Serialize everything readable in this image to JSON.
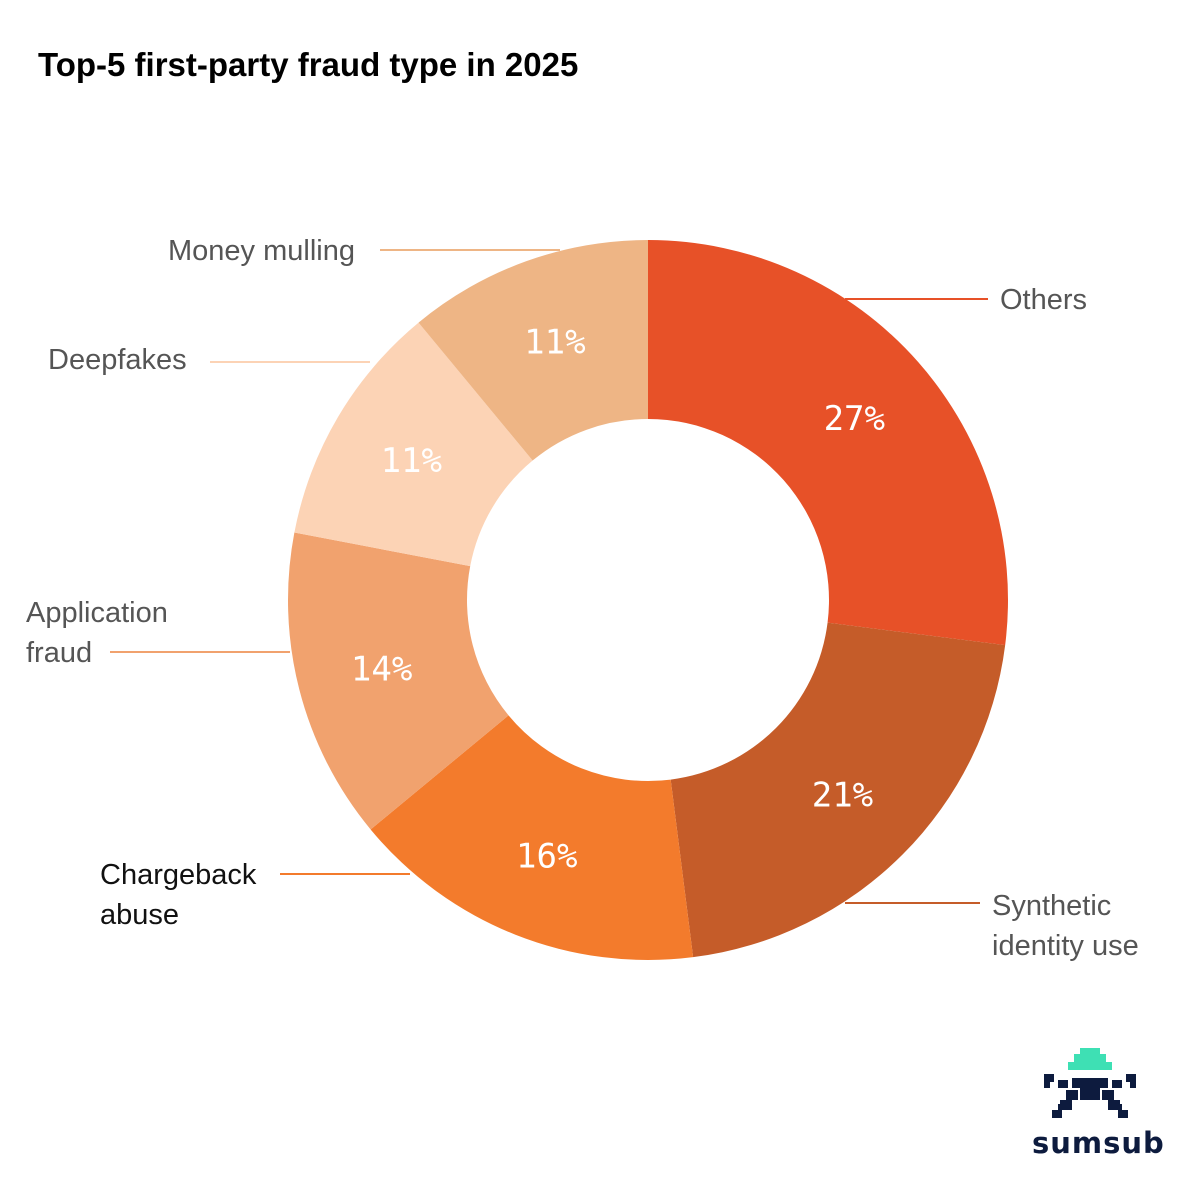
{
  "chart_data": {
    "type": "pie",
    "title": "Top-5 first-party fraud type in 2025",
    "categories": [
      "Others",
      "Synthetic identity use",
      "Chargeback abuse",
      "Application fraud",
      "Deepfakes",
      "Money mulling"
    ],
    "values": [
      27,
      21,
      16,
      14,
      11,
      11
    ],
    "value_labels": [
      "27%",
      "21%",
      "16%",
      "14%",
      "11%",
      "11%"
    ],
    "label_lines": [
      [
        "Others"
      ],
      [
        "Synthetic",
        "identity use"
      ],
      [
        "Chargeback",
        "abuse"
      ],
      [
        "Application",
        "fraud"
      ],
      [
        "Deepfakes"
      ],
      [
        "Money mulling"
      ]
    ],
    "colors": [
      "#e75128",
      "#c55c29",
      "#f37b2c",
      "#f1a26e",
      "#fcd3b5",
      "#eeb585"
    ],
    "label_colors": [
      "#555555",
      "#555555",
      "#111111",
      "#555555",
      "#555555",
      "#555555"
    ],
    "line_colors": [
      "#e75128",
      "#c55c29",
      "#f37b2c",
      "#f1a26e",
      "#fcd3b5",
      "#eeb585"
    ],
    "donut": true
  },
  "brand": {
    "name": "sumsub",
    "primary_color": "#0d1b3e",
    "accent_color": "#3ee0b4",
    "logo_icon": "sumsub-invader-icon"
  }
}
